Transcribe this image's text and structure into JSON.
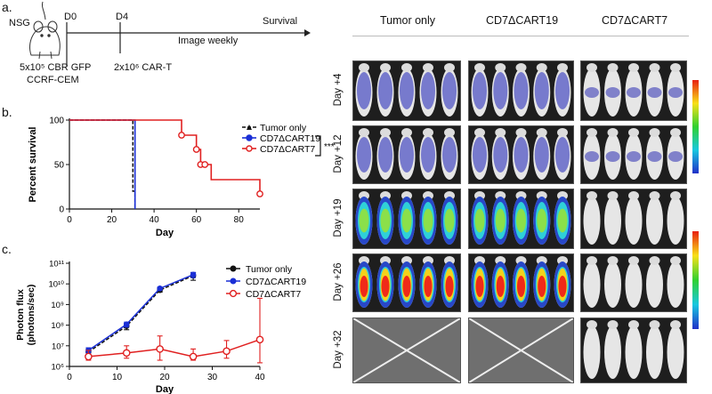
{
  "panel_labels": {
    "a": "a.",
    "b": "b.",
    "c": "c."
  },
  "timeline": {
    "strain": "NSG",
    "d0": "D0",
    "d4": "D4",
    "survival": "Survival",
    "image_weekly": "Image weekly",
    "injection1_line1": "5x10⁵ CBR GFP",
    "injection1_line2": "CCRF-CEM",
    "injection2": "2x10⁶ CAR-T"
  },
  "survival_chart": {
    "legend": [
      "Tumor only",
      "CD7ΔCART19",
      "CD7ΔCART7"
    ],
    "significance": "***",
    "ylabel": "Percent survival",
    "xlabel": "Day",
    "xticks": [
      "0",
      "20",
      "40",
      "60",
      "80"
    ],
    "yticks": [
      "0",
      "50",
      "100"
    ]
  },
  "flux_chart": {
    "legend": [
      "Tumor only",
      "CD7ΔCART19",
      "CD7ΔCART7"
    ],
    "ylabel_line1": "Photon flux",
    "ylabel_line2": "(photons/sec)",
    "xlabel": "Day",
    "xticks": [
      "0",
      "10",
      "20",
      "30",
      "40"
    ],
    "yticks": [
      "10⁶",
      "10⁷",
      "10⁸",
      "10⁹",
      "10¹⁰",
      "10¹¹"
    ]
  },
  "chart_data": [
    {
      "type": "line",
      "subtype": "kaplan-meier",
      "title": "",
      "xlabel": "Day",
      "ylabel": "Percent survival",
      "xlim": [
        0,
        90
      ],
      "ylim": [
        0,
        100
      ],
      "series": [
        {
          "name": "Tumor only",
          "color": "#111111",
          "x": [
            0,
            30,
            30,
            31,
            31
          ],
          "y": [
            100,
            100,
            20,
            20,
            0
          ]
        },
        {
          "name": "CD7ΔCART19",
          "color": "#1a2fd6",
          "x": [
            0,
            31,
            31
          ],
          "y": [
            100,
            100,
            0
          ]
        },
        {
          "name": "CD7ΔCART7",
          "color": "#e02020",
          "x": [
            0,
            53,
            53,
            60,
            60,
            62,
            62,
            64,
            64,
            67,
            67,
            90,
            90
          ],
          "y": [
            100,
            100,
            83,
            83,
            67,
            67,
            50,
            50,
            50,
            50,
            33,
            33,
            17
          ],
          "censored": [
            [
              53,
              83
            ],
            [
              60,
              67
            ],
            [
              62,
              50
            ],
            [
              64,
              50
            ],
            [
              90,
              17
            ]
          ]
        }
      ]
    },
    {
      "type": "line",
      "title": "",
      "xlabel": "Day",
      "ylabel": "Photon flux (photons/sec)",
      "yscale": "log",
      "xlim": [
        0,
        40
      ],
      "ylim": [
        1000000.0,
        100000000000.0
      ],
      "series": [
        {
          "name": "Tumor only",
          "color": "#111111",
          "x": [
            4,
            12,
            19,
            26
          ],
          "y": [
            5000000.0,
            90000000.0,
            5000000000.0,
            25000000000.0
          ],
          "err_hi": [
            7000000.0,
            120000000.0,
            6500000000.0,
            35000000000.0
          ],
          "err_lo": [
            3500000.0,
            60000000.0,
            4000000000.0,
            15000000000.0
          ]
        },
        {
          "name": "CD7ΔCART19",
          "color": "#1a2fd6",
          "x": [
            4,
            12,
            19,
            26
          ],
          "y": [
            6000000.0,
            110000000.0,
            6000000000.0,
            28000000000.0
          ],
          "err_hi": [
            8000000.0,
            140000000.0,
            7000000000.0,
            36000000000.0
          ],
          "err_lo": [
            4500000.0,
            80000000.0,
            5000000000.0,
            20000000000.0
          ]
        },
        {
          "name": "CD7ΔCART7",
          "color": "#e02020",
          "x": [
            4,
            12,
            19,
            26,
            33,
            40
          ],
          "y": [
            3000000.0,
            4500000.0,
            7000000.0,
            3000000.0,
            5500000.0,
            20000000.0
          ],
          "err_hi": [
            6000000.0,
            10000000.0,
            30000000.0,
            7000000.0,
            18000000.0,
            2000000000.0
          ],
          "err_lo": [
            2000000.0,
            2500000.0,
            2000000.0,
            2000000.0,
            2500000.0,
            1500000.0
          ]
        }
      ]
    }
  ],
  "imaging": {
    "columns": [
      "Tumor only",
      "CD7ΔCART19",
      "CD7ΔCART7"
    ],
    "rows": [
      "Day +4",
      "Day +12",
      "Day +19",
      "Day +26",
      "Day +32"
    ]
  }
}
